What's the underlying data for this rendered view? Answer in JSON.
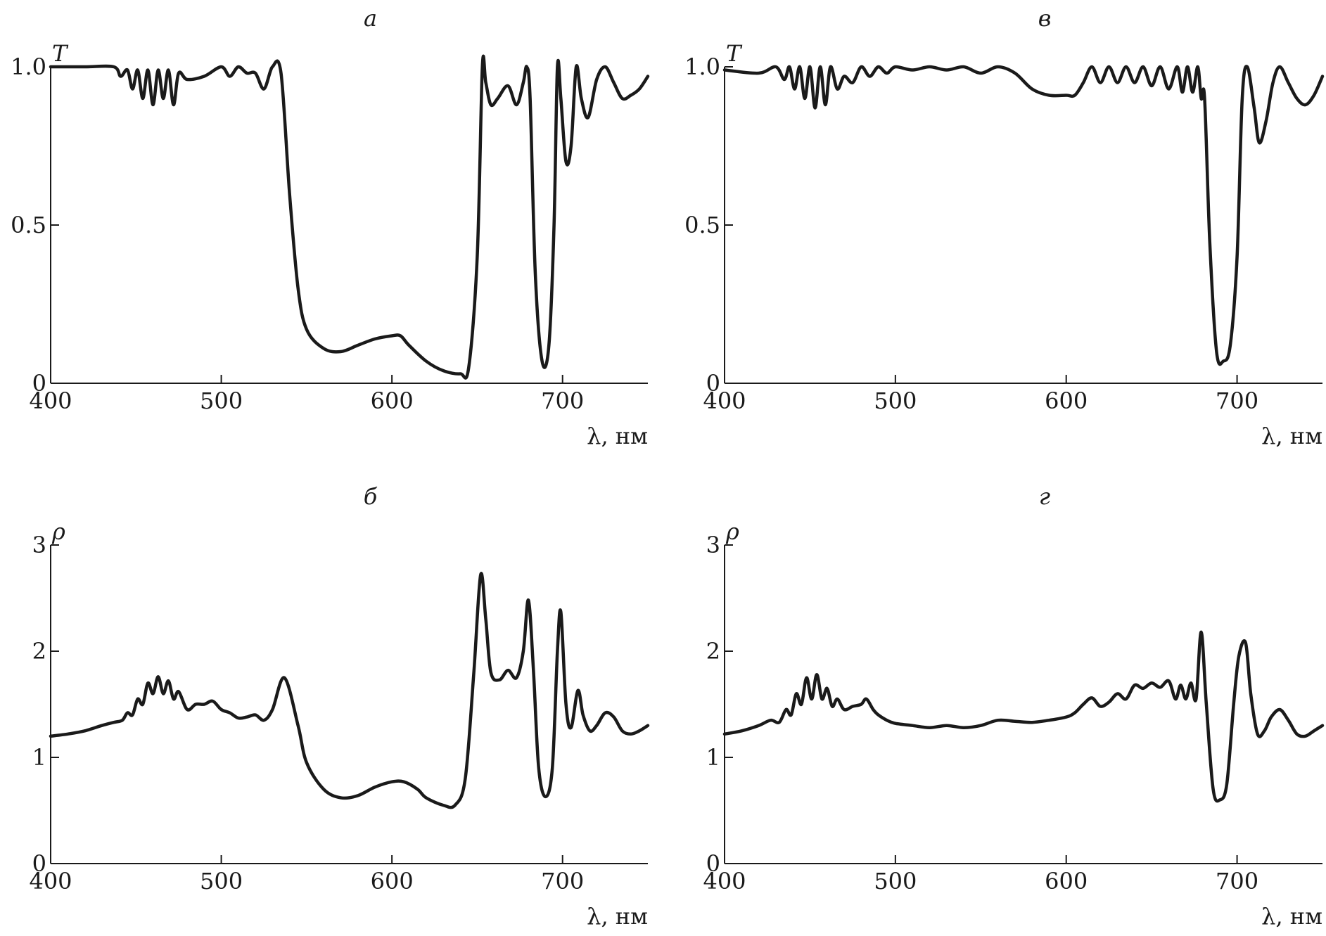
{
  "chart_data": [
    {
      "type": "line",
      "panel_label": "а",
      "ylabel": "T",
      "xlabel": "λ, нм",
      "xlim": [
        400,
        750
      ],
      "ylim": [
        0,
        1.0
      ],
      "xticks": [
        400,
        500,
        600,
        700
      ],
      "yticks": [
        0,
        0.5,
        1.0
      ],
      "ytick_labels": [
        "0",
        "0.5",
        "1.0"
      ],
      "series": [
        {
          "x": [
            400,
            420,
            437,
            441,
            445,
            448,
            451,
            454,
            457,
            460,
            463,
            466,
            469,
            472,
            475,
            480,
            490,
            500,
            505,
            510,
            515,
            520,
            525,
            530,
            535,
            540,
            545,
            550,
            560,
            570,
            580,
            590,
            600,
            605,
            610,
            620,
            630,
            640,
            645,
            650,
            653,
            655,
            658,
            662,
            668,
            673,
            677,
            679,
            681,
            684,
            688,
            692,
            695,
            697,
            699,
            702,
            705,
            708,
            711,
            715,
            720,
            725,
            730,
            735,
            740,
            745,
            750
          ],
          "y": [
            1.0,
            1.0,
            1.0,
            0.97,
            0.99,
            0.93,
            0.99,
            0.9,
            0.99,
            0.88,
            0.99,
            0.9,
            0.99,
            0.88,
            0.98,
            0.96,
            0.97,
            1.0,
            0.97,
            1.0,
            0.98,
            0.98,
            0.93,
            1.0,
            0.98,
            0.6,
            0.3,
            0.17,
            0.11,
            0.1,
            0.12,
            0.14,
            0.15,
            0.15,
            0.12,
            0.07,
            0.04,
            0.03,
            0.05,
            0.4,
            1.0,
            0.95,
            0.88,
            0.9,
            0.94,
            0.88,
            0.95,
            1.0,
            0.9,
            0.35,
            0.07,
            0.12,
            0.5,
            1.0,
            0.9,
            0.7,
            0.75,
            1.0,
            0.9,
            0.84,
            0.96,
            1.0,
            0.95,
            0.9,
            0.91,
            0.93,
            0.97
          ]
        }
      ]
    },
    {
      "type": "line",
      "panel_label": "в",
      "ylabel": "T",
      "xlabel": "λ, нм",
      "xlim": [
        400,
        750
      ],
      "ylim": [
        0,
        1.0
      ],
      "xticks": [
        400,
        500,
        600,
        700
      ],
      "yticks": [
        0,
        0.5,
        1.0
      ],
      "ytick_labels": [
        "0",
        "0.5",
        "1.0"
      ],
      "series": [
        {
          "x": [
            400,
            420,
            430,
            435,
            438,
            441,
            444,
            447,
            450,
            453,
            456,
            459,
            462,
            466,
            470,
            475,
            480,
            485,
            490,
            495,
            500,
            510,
            520,
            530,
            540,
            550,
            560,
            570,
            580,
            590,
            600,
            605,
            610,
            615,
            620,
            625,
            630,
            635,
            640,
            645,
            650,
            655,
            660,
            665,
            668,
            671,
            674,
            677,
            679,
            681,
            684,
            688,
            692,
            696,
            700,
            703,
            706,
            710,
            713,
            717,
            721,
            725,
            730,
            735,
            740,
            745,
            750
          ],
          "y": [
            0.99,
            0.98,
            1.0,
            0.96,
            1.0,
            0.93,
            1.0,
            0.9,
            1.0,
            0.87,
            1.0,
            0.88,
            1.0,
            0.93,
            0.97,
            0.95,
            1.0,
            0.97,
            1.0,
            0.98,
            1.0,
            0.99,
            1.0,
            0.99,
            1.0,
            0.98,
            1.0,
            0.98,
            0.93,
            0.91,
            0.91,
            0.91,
            0.95,
            1.0,
            0.95,
            1.0,
            0.95,
            1.0,
            0.95,
            1.0,
            0.94,
            1.0,
            0.93,
            1.0,
            0.92,
            1.0,
            0.92,
            1.0,
            0.9,
            0.9,
            0.45,
            0.1,
            0.07,
            0.12,
            0.4,
            0.9,
            1.0,
            0.87,
            0.76,
            0.83,
            0.95,
            1.0,
            0.95,
            0.9,
            0.88,
            0.91,
            0.97
          ]
        }
      ]
    },
    {
      "type": "line",
      "panel_label": "б",
      "ylabel": "ρ",
      "xlabel": "λ, нм",
      "xlim": [
        400,
        750
      ],
      "ylim": [
        0,
        3
      ],
      "xticks": [
        400,
        500,
        600,
        700
      ],
      "yticks": [
        0,
        1,
        2,
        3
      ],
      "ytick_labels": [
        "0",
        "1",
        "2",
        "3"
      ],
      "series": [
        {
          "x": [
            400,
            410,
            420,
            430,
            437,
            442,
            445,
            448,
            451,
            454,
            457,
            460,
            463,
            466,
            469,
            472,
            475,
            480,
            485,
            490,
            495,
            500,
            505,
            510,
            515,
            520,
            525,
            530,
            537,
            545,
            550,
            560,
            570,
            580,
            590,
            600,
            607,
            615,
            620,
            630,
            637,
            643,
            648,
            652,
            655,
            658,
            663,
            668,
            673,
            677,
            680,
            683,
            686,
            690,
            694,
            697,
            699,
            702,
            705,
            709,
            712,
            716,
            720,
            725,
            730,
            735,
            740,
            745,
            750
          ],
          "y": [
            1.2,
            1.22,
            1.25,
            1.3,
            1.33,
            1.35,
            1.42,
            1.4,
            1.55,
            1.5,
            1.7,
            1.6,
            1.76,
            1.6,
            1.72,
            1.55,
            1.62,
            1.45,
            1.5,
            1.5,
            1.53,
            1.45,
            1.42,
            1.37,
            1.38,
            1.4,
            1.35,
            1.45,
            1.75,
            1.3,
            0.95,
            0.7,
            0.62,
            0.64,
            0.72,
            0.77,
            0.77,
            0.7,
            0.62,
            0.55,
            0.55,
            0.8,
            1.8,
            2.72,
            2.3,
            1.8,
            1.73,
            1.82,
            1.75,
            2.0,
            2.48,
            1.8,
            0.9,
            0.63,
            0.9,
            2.0,
            2.37,
            1.5,
            1.28,
            1.63,
            1.4,
            1.25,
            1.3,
            1.42,
            1.38,
            1.25,
            1.22,
            1.25,
            1.3
          ]
        }
      ]
    },
    {
      "type": "line",
      "panel_label": "г",
      "ylabel": "ρ",
      "xlabel": "λ, нм",
      "xlim": [
        400,
        750
      ],
      "ylim": [
        0,
        3
      ],
      "xticks": [
        400,
        500,
        600,
        700
      ],
      "yticks": [
        0,
        1,
        2,
        3
      ],
      "ytick_labels": [
        "0",
        "1",
        "2",
        "3"
      ],
      "series": [
        {
          "x": [
            400,
            410,
            420,
            427,
            432,
            436,
            439,
            442,
            445,
            448,
            451,
            454,
            457,
            460,
            463,
            466,
            470,
            475,
            480,
            483,
            487,
            490,
            495,
            500,
            510,
            520,
            530,
            540,
            550,
            560,
            570,
            580,
            590,
            600,
            605,
            610,
            615,
            620,
            625,
            630,
            635,
            640,
            645,
            650,
            655,
            660,
            664,
            667,
            670,
            673,
            676,
            679,
            682,
            686,
            690,
            694,
            698,
            701,
            705,
            708,
            712,
            716,
            720,
            725,
            730,
            735,
            740,
            745,
            750
          ],
          "y": [
            1.22,
            1.25,
            1.3,
            1.35,
            1.33,
            1.45,
            1.4,
            1.6,
            1.5,
            1.75,
            1.55,
            1.78,
            1.55,
            1.65,
            1.48,
            1.55,
            1.45,
            1.48,
            1.5,
            1.55,
            1.45,
            1.4,
            1.35,
            1.32,
            1.3,
            1.28,
            1.3,
            1.28,
            1.3,
            1.35,
            1.34,
            1.33,
            1.35,
            1.38,
            1.42,
            1.5,
            1.56,
            1.48,
            1.52,
            1.6,
            1.55,
            1.68,
            1.65,
            1.7,
            1.66,
            1.72,
            1.55,
            1.68,
            1.55,
            1.7,
            1.55,
            2.18,
            1.5,
            0.7,
            0.6,
            0.75,
            1.5,
            1.95,
            2.08,
            1.6,
            1.22,
            1.25,
            1.38,
            1.45,
            1.35,
            1.22,
            1.2,
            1.25,
            1.3
          ]
        }
      ]
    }
  ]
}
